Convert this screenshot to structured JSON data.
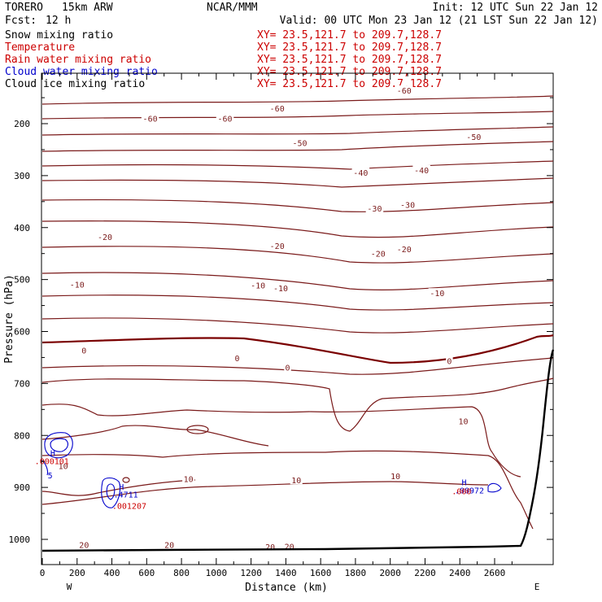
{
  "header": {
    "model": "TORERO",
    "resolution": "15km ARW",
    "center": "NCAR/MMM",
    "init": "Init: 12 UTC Sun 22 Jan 12",
    "fcst_label": "Fcst:",
    "fcst_value": "12 h",
    "valid": "Valid: 00 UTC Mon 23 Jan 12 (21 LST Sun 22 Jan 12)"
  },
  "fields": [
    {
      "name": "Snow mixing ratio",
      "color": "#000000"
    },
    {
      "name": "Temperature",
      "color": "#cc0000"
    },
    {
      "name": "Rain water mixing ratio",
      "color": "#cc0000"
    },
    {
      "name": "Cloud water mixing ratio",
      "color": "#0000cc"
    },
    {
      "name": "Cloud ice mixing ratio",
      "color": "#000000"
    }
  ],
  "xy_text": "XY=  23.5,121.7 to 209.7,128.7",
  "xy_color": "#cc0000",
  "colors": {
    "temperature_contour": "#7a1a1a",
    "freezing_line": "#7a0000",
    "cloud_water": "#0000cc",
    "rain_water": "#cc0000",
    "terrain": "#000000",
    "axis": "#000000"
  },
  "chart_data": {
    "type": "cross-section contour",
    "xlabel": "Distance (km)",
    "ylabel": "Pressure (hPa)",
    "xlim": [
      0,
      2780
    ],
    "ylim": [
      1050,
      100
    ],
    "x_ticks": [
      0,
      200,
      400,
      600,
      800,
      1000,
      1200,
      1400,
      1600,
      1800,
      2000,
      2200,
      2400,
      2600
    ],
    "y_ticks": [
      200,
      300,
      400,
      500,
      600,
      700,
      800,
      900,
      1000
    ],
    "x_end_labels": {
      "left": "W",
      "right": "E"
    },
    "contour_labels": [
      {
        "text": "-60",
        "x": 2080,
        "p": 136
      },
      {
        "text": "-60",
        "x": 1350,
        "p": 170
      },
      {
        "text": "-60",
        "x": 620,
        "p": 190
      },
      {
        "text": "-60",
        "x": 1050,
        "p": 190
      },
      {
        "text": "-50",
        "x": 1480,
        "p": 237
      },
      {
        "text": "-50",
        "x": 2480,
        "p": 225
      },
      {
        "text": "-40",
        "x": 1830,
        "p": 294
      },
      {
        "text": "-40",
        "x": 2180,
        "p": 289
      },
      {
        "text": "-30",
        "x": 1910,
        "p": 363
      },
      {
        "text": "-30",
        "x": 2100,
        "p": 356
      },
      {
        "text": "-20",
        "x": 360,
        "p": 418
      },
      {
        "text": "-20",
        "x": 1350,
        "p": 435
      },
      {
        "text": "-20",
        "x": 1930,
        "p": 450
      },
      {
        "text": "-20",
        "x": 2080,
        "p": 441
      },
      {
        "text": "-10",
        "x": 200,
        "p": 509
      },
      {
        "text": "-10",
        "x": 1240,
        "p": 511
      },
      {
        "text": "-10",
        "x": 1370,
        "p": 516
      },
      {
        "text": "-10",
        "x": 2270,
        "p": 526
      },
      {
        "text": "0",
        "x": 240,
        "p": 636
      },
      {
        "text": "0",
        "x": 1120,
        "p": 651
      },
      {
        "text": "0",
        "x": 1410,
        "p": 669
      },
      {
        "text": "0",
        "x": 2340,
        "p": 656
      },
      {
        "text": "10",
        "x": 2420,
        "p": 772
      },
      {
        "text": "10",
        "x": 120,
        "p": 858
      },
      {
        "text": "10",
        "x": 840,
        "p": 883
      },
      {
        "text": "10",
        "x": 1460,
        "p": 886
      },
      {
        "text": "10",
        "x": 2030,
        "p": 878
      },
      {
        "text": "20",
        "x": 240,
        "p": 1010
      },
      {
        "text": "20",
        "x": 730,
        "p": 1010
      },
      {
        "text": "20",
        "x": 1310,
        "p": 1014
      },
      {
        "text": "20",
        "x": 1420,
        "p": 1013
      }
    ],
    "cloud_water_labels": [
      {
        "text": "H",
        "x": 455,
        "p": 898
      },
      {
        "text": ".4711",
        "x": 480,
        "p": 913
      },
      {
        "text": "H",
        "x": 2425,
        "p": 890
      },
      {
        "text": ".00972",
        "x": 2455,
        "p": 905
      },
      {
        "text": "H",
        "x": 60,
        "p": 833
      },
      {
        "text": "5",
        "x": 45,
        "p": 876
      }
    ],
    "rain_water_labels": [
      {
        "text": ".001207",
        "x": 500,
        "p": 935
      },
      {
        "text": ".000101",
        "x": 55,
        "p": 849
      },
      {
        "text": ".000",
        "x": 2410,
        "p": 907
      }
    ]
  }
}
